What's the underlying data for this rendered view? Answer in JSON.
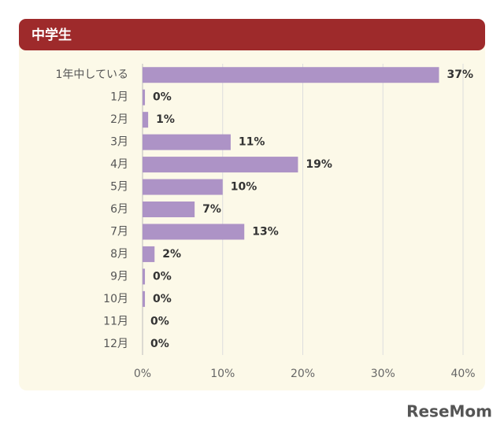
{
  "chart_data": {
    "type": "bar",
    "orientation": "horizontal",
    "title": "中学生",
    "categories": [
      "1年中している",
      "1月",
      "2月",
      "3月",
      "4月",
      "5月",
      "6月",
      "7月",
      "8月",
      "9月",
      "10月",
      "11月",
      "12月"
    ],
    "values": [
      37,
      0.3,
      0.7,
      11,
      19.4,
      10,
      6.5,
      12.7,
      1.5,
      0.3,
      0.3,
      0,
      0
    ],
    "value_labels": [
      "37%",
      "0%",
      "1%",
      "11%",
      "19%",
      "10%",
      "7%",
      "13%",
      "2%",
      "0%",
      "0%",
      "0%",
      "0%"
    ],
    "color": "#ad93c6",
    "xlim": [
      0,
      40
    ],
    "xticks": [
      {
        "value": 0,
        "label": "0%"
      },
      {
        "value": 10,
        "label": "10%"
      },
      {
        "value": 20,
        "label": "20%"
      },
      {
        "value": 30,
        "label": "30%"
      },
      {
        "value": 40,
        "label": "40%"
      }
    ],
    "grid": true,
    "watermark": "ReseMom"
  }
}
